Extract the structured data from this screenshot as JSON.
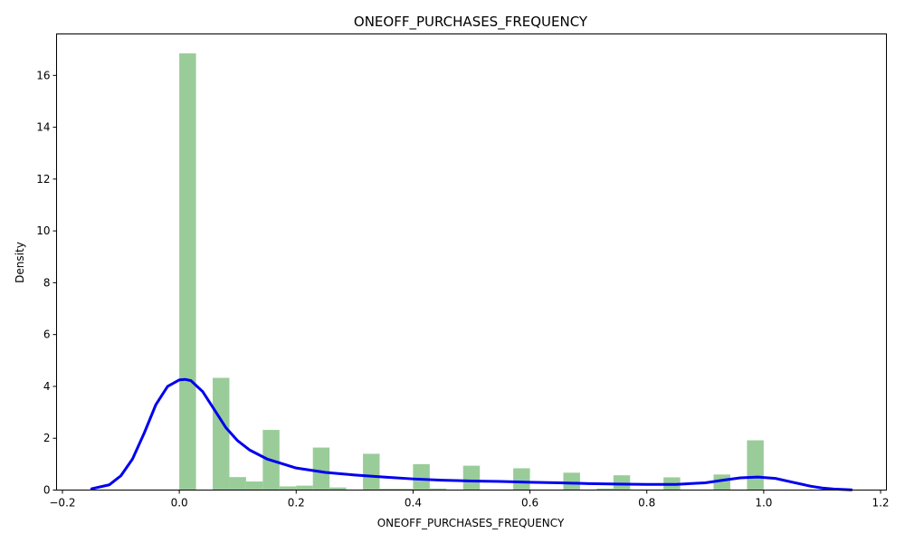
{
  "chart_data": {
    "type": "bar",
    "title": "ONEOFF_PURCHASES_FREQUENCY",
    "xlabel": "ONEOFF_PURCHASES_FREQUENCY",
    "ylabel": "Density",
    "xlim": [
      -0.21,
      1.21
    ],
    "ylim": [
      0,
      17.6
    ],
    "xticks": [
      -0.2,
      0.0,
      0.2,
      0.4,
      0.6,
      0.8,
      1.0,
      1.2
    ],
    "xtick_labels": [
      "−0.2",
      "0.0",
      "0.2",
      "0.4",
      "0.6",
      "0.8",
      "1.0",
      "1.2"
    ],
    "yticks": [
      0,
      2,
      4,
      6,
      8,
      10,
      12,
      14,
      16
    ],
    "ytick_labels": [
      "0",
      "2",
      "4",
      "6",
      "8",
      "10",
      "12",
      "14",
      "16"
    ],
    "grid": false,
    "colors": {
      "bars": "#99cc99",
      "kde": "#0000ee"
    },
    "series": [
      {
        "type": "histogram",
        "bin_start": 0.0,
        "bin_width": 0.02857,
        "values": [
          16.85,
          0,
          4.33,
          0.5,
          0.33,
          2.32,
          0.14,
          0.17,
          1.64,
          0.1,
          0.02,
          1.4,
          0.05,
          0.05,
          1.0,
          0.06,
          0.02,
          0.94,
          0.02,
          0.02,
          0.84,
          0.02,
          0.02,
          0.67,
          0.02,
          0.06,
          0.57,
          0.02,
          0.02,
          0.49,
          0.02,
          0.02,
          0.6,
          0.02,
          1.92
        ]
      },
      {
        "type": "kde",
        "x": [
          -0.15,
          -0.12,
          -0.1,
          -0.08,
          -0.06,
          -0.04,
          -0.02,
          0.0,
          0.01,
          0.02,
          0.04,
          0.06,
          0.08,
          0.1,
          0.12,
          0.15,
          0.2,
          0.25,
          0.3,
          0.35,
          0.4,
          0.45,
          0.5,
          0.55,
          0.6,
          0.65,
          0.7,
          0.75,
          0.8,
          0.85,
          0.9,
          0.93,
          0.96,
          0.99,
          1.02,
          1.05,
          1.08,
          1.1,
          1.12,
          1.15
        ],
        "y": [
          0.05,
          0.2,
          0.55,
          1.2,
          2.2,
          3.3,
          4.0,
          4.25,
          4.27,
          4.22,
          3.8,
          3.1,
          2.4,
          1.9,
          1.55,
          1.2,
          0.85,
          0.68,
          0.58,
          0.5,
          0.43,
          0.38,
          0.35,
          0.33,
          0.3,
          0.28,
          0.25,
          0.23,
          0.22,
          0.22,
          0.28,
          0.38,
          0.47,
          0.5,
          0.45,
          0.3,
          0.15,
          0.08,
          0.04,
          0.01
        ]
      }
    ]
  }
}
